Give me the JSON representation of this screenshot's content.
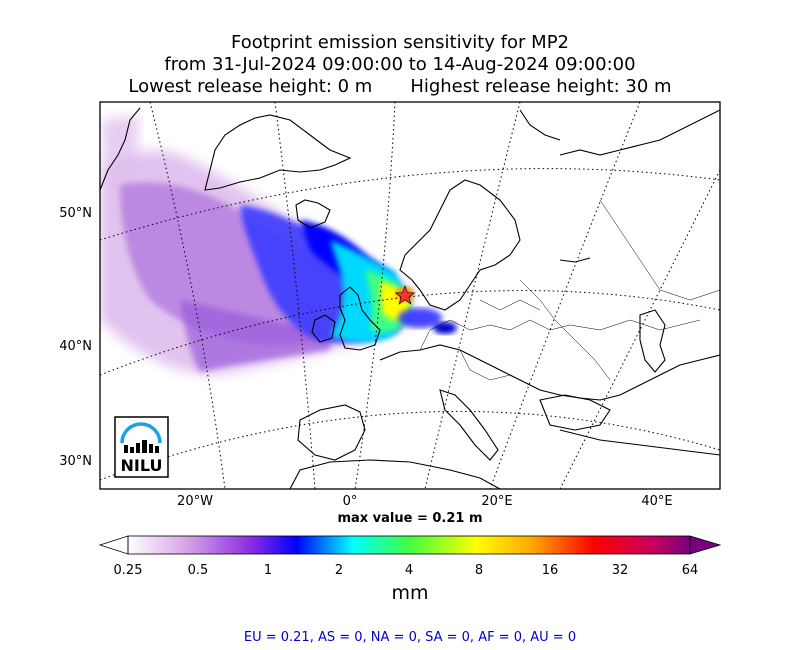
{
  "title": {
    "line1": "Footprint emission sensitivity for MP2",
    "line2": "from 31-Jul-2024 09:00:00 to 14-Aug-2024 09:00:00",
    "lowest": "Lowest release height: 0 m",
    "highest": "Highest release height: 30 m"
  },
  "map": {
    "lat_labels": [
      "50°N",
      "40°N",
      "30°N"
    ],
    "lon_labels": [
      "20°W",
      "0°",
      "20°E",
      "40°E"
    ],
    "logo_text": "NILU",
    "release_site_marker": "star-icon"
  },
  "max_value": "max value = 0.21 m",
  "colorbar": {
    "ticks": [
      "0.25",
      "0.5",
      "1",
      "2",
      "4",
      "8",
      "16",
      "32",
      "64"
    ],
    "units": "mm",
    "colors": [
      "#ffffff",
      "#d09be0",
      "#9a40d8",
      "#0000ff",
      "#00ffff",
      "#40ff40",
      "#ffff00",
      "#ffa500",
      "#ff0000",
      "#c00060",
      "#7a0080"
    ]
  },
  "regions": "EU = 0.21,  AS = 0,  NA = 0,  SA = 0,  AF = 0,  AU = 0"
}
